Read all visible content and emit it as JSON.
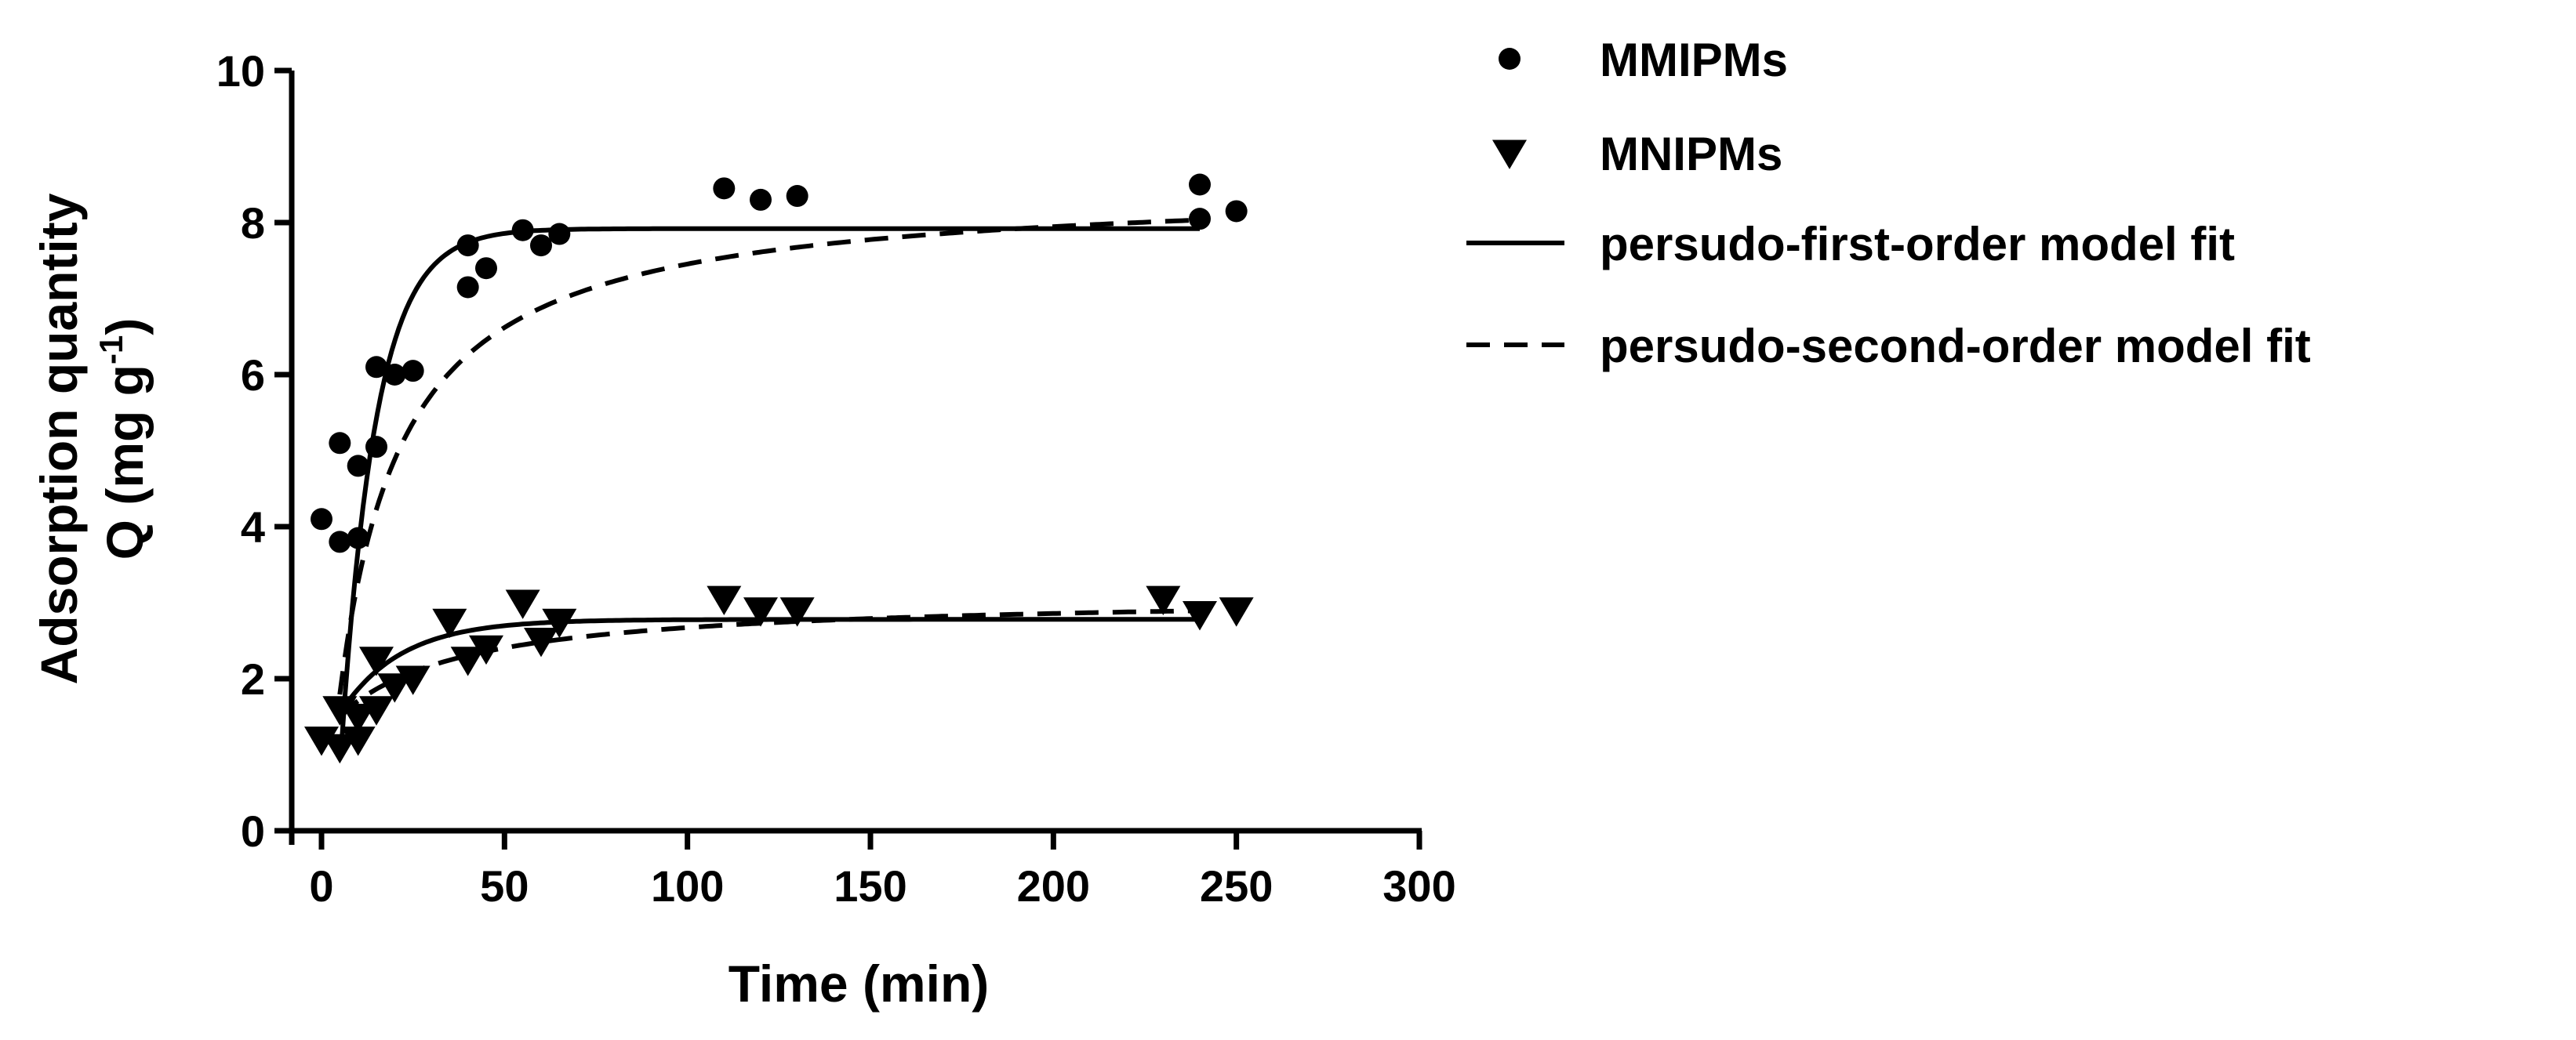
{
  "chart_data": {
    "type": "scatter",
    "title": "",
    "xlabel": "Time (min)",
    "ylabel_line1": "Adsorption quantity",
    "ylabel_line2": "Q (mg g",
    "ylabel_sup": "-1",
    "ylabel_close": ")",
    "xlim": [
      0,
      300
    ],
    "ylim": [
      0,
      10
    ],
    "x_ticks": [
      "0",
      "50",
      "100",
      "150",
      "200",
      "250",
      "300"
    ],
    "y_ticks": [
      "0",
      "2",
      "4",
      "6",
      "8",
      "10"
    ],
    "grid": false,
    "legend_position": "right",
    "series": [
      {
        "name": "MMIPMs",
        "marker": "circle",
        "points": [
          [
            0,
            4.1
          ],
          [
            5,
            5.1
          ],
          [
            5,
            3.8
          ],
          [
            10,
            3.85
          ],
          [
            10,
            4.8
          ],
          [
            15,
            5.05
          ],
          [
            15,
            6.1
          ],
          [
            20,
            6.0
          ],
          [
            25,
            6.05
          ],
          [
            40,
            7.7
          ],
          [
            40,
            7.15
          ],
          [
            45,
            7.4
          ],
          [
            55,
            7.9
          ],
          [
            60,
            7.7
          ],
          [
            65,
            7.85
          ],
          [
            110,
            8.45
          ],
          [
            120,
            8.3
          ],
          [
            130,
            8.35
          ],
          [
            240,
            8.5
          ],
          [
            240,
            8.05
          ],
          [
            250,
            8.15
          ]
        ]
      },
      {
        "name": "MNIPMs",
        "marker": "triangle-down",
        "points": [
          [
            0,
            1.2
          ],
          [
            5,
            1.1
          ],
          [
            5,
            1.6
          ],
          [
            10,
            1.2
          ],
          [
            10,
            1.5
          ],
          [
            15,
            2.25
          ],
          [
            15,
            1.6
          ],
          [
            20,
            1.9
          ],
          [
            25,
            2.0
          ],
          [
            35,
            2.75
          ],
          [
            40,
            2.25
          ],
          [
            45,
            2.4
          ],
          [
            55,
            3.0
          ],
          [
            60,
            2.5
          ],
          [
            65,
            2.75
          ],
          [
            110,
            3.05
          ],
          [
            120,
            2.9
          ],
          [
            130,
            2.9
          ],
          [
            230,
            3.05
          ],
          [
            240,
            2.85
          ],
          [
            250,
            2.9
          ]
        ]
      }
    ],
    "fits": [
      {
        "name": "persudo-first-order model fit",
        "style": "solid",
        "curves": [
          {
            "qe": 7.92,
            "k": 0.105,
            "t0": 4.0,
            "tmin": 5.5,
            "tmax": 240
          },
          {
            "qe": 2.78,
            "k": 0.06,
            "t0": -8.5,
            "tmin": 5,
            "tmax": 240
          }
        ]
      },
      {
        "name": "persudo-second-order model fit",
        "style": "dashed",
        "curves": [
          {
            "qe": 8.5,
            "k": 0.0085,
            "t0": 1.3,
            "tmin": 5,
            "tmax": 240
          },
          {
            "qe": 3.1,
            "k": 0.018,
            "t0": -12.0,
            "tmin": 5,
            "tmax": 240
          }
        ]
      }
    ]
  }
}
